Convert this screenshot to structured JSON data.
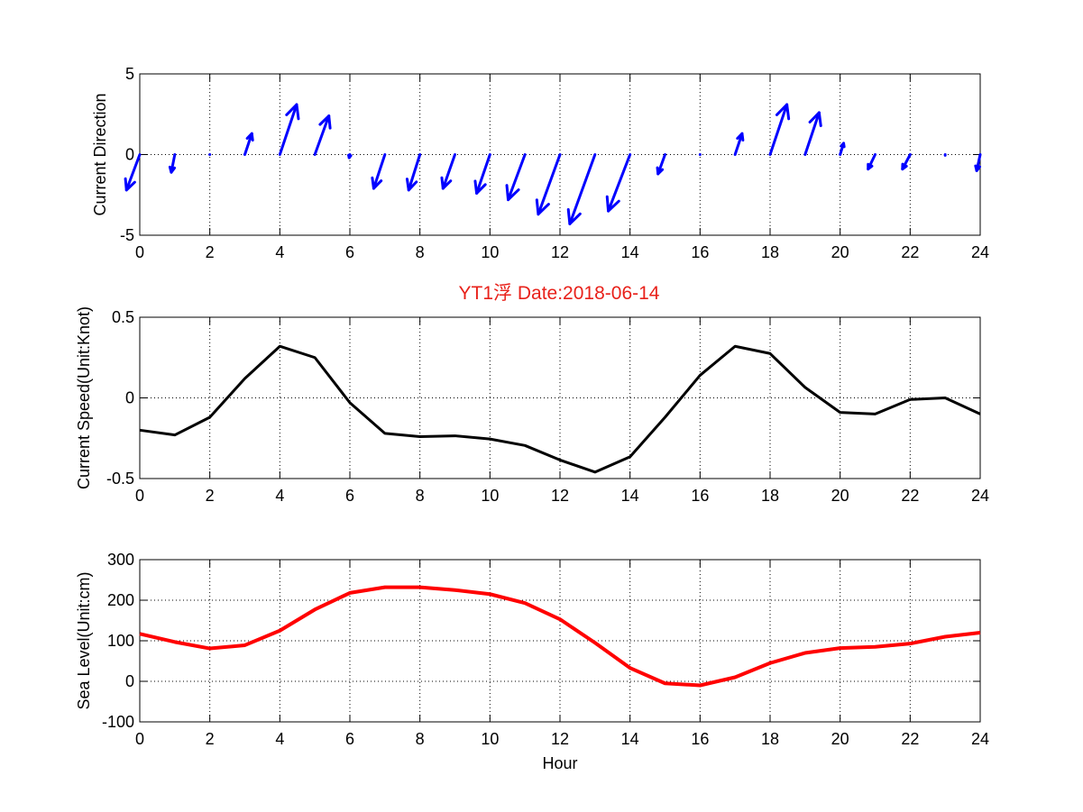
{
  "colors": {
    "direction": "#0000ff",
    "speed": "#000000",
    "sea_level": "#ff0000",
    "title": "#e8211a"
  },
  "title": "YT1浮    Date:2018-06-14",
  "chart_data": [
    {
      "type": "quiver",
      "ylabel": "Current Direction",
      "xlim": [
        0,
        24
      ],
      "ylim": [
        -5,
        5
      ],
      "xticks": [
        "0",
        "2",
        "4",
        "6",
        "8",
        "10",
        "12",
        "14",
        "16",
        "18",
        "20",
        "22",
        "24"
      ],
      "yticks": [
        "5",
        "0",
        "-5"
      ],
      "grid": true,
      "x": [
        0,
        1,
        2,
        3,
        4,
        5,
        6,
        7,
        8,
        9,
        10,
        11,
        12,
        13,
        14,
        15,
        16,
        17,
        18,
        19,
        20,
        21,
        22,
        23,
        24
      ],
      "u": [
        -0.38,
        -0.1,
        0,
        0.2,
        0.48,
        0.4,
        -0.02,
        -0.32,
        -0.32,
        -0.34,
        -0.38,
        -0.48,
        -0.62,
        -0.72,
        -0.62,
        -0.2,
        0,
        0.2,
        0.48,
        0.4,
        0.1,
        -0.2,
        -0.22,
        0,
        -0.1
      ],
      "v": [
        -2.2,
        -1.1,
        0,
        1.3,
        3.1,
        2.4,
        -0.2,
        -2.1,
        -2.2,
        -2.1,
        -2.4,
        -2.8,
        -3.7,
        -4.3,
        -3.5,
        -1.2,
        0,
        1.3,
        3.1,
        2.6,
        0.7,
        -0.9,
        -0.9,
        -0.05,
        -1.0
      ]
    },
    {
      "type": "line",
      "ylabel": "Current Speed(Unit:Knot)",
      "xlim": [
        0,
        24
      ],
      "ylim": [
        -0.5,
        0.5
      ],
      "xticks": [
        "0",
        "2",
        "4",
        "6",
        "8",
        "10",
        "12",
        "14",
        "16",
        "18",
        "20",
        "22",
        "24"
      ],
      "yticks": [
        "0.5",
        "0",
        "-0.5"
      ],
      "grid": true,
      "x": [
        0,
        1,
        2,
        3,
        4,
        5,
        6,
        7,
        8,
        9,
        10,
        11,
        12,
        13,
        14,
        15,
        16,
        17,
        18,
        19,
        20,
        21,
        22,
        23,
        24
      ],
      "y": [
        -0.2,
        -0.23,
        -0.12,
        0.12,
        0.32,
        0.25,
        -0.03,
        -0.22,
        -0.24,
        -0.235,
        -0.255,
        -0.295,
        -0.385,
        -0.46,
        -0.365,
        -0.12,
        0.14,
        0.32,
        0.275,
        0.065,
        -0.09,
        -0.1,
        -0.01,
        0,
        -0.1
      ]
    },
    {
      "type": "line",
      "xlabel": "Hour",
      "ylabel": "Sea Level(Unit:cm)",
      "xlim": [
        0,
        24
      ],
      "ylim": [
        -100,
        300
      ],
      "xticks": [
        "0",
        "2",
        "4",
        "6",
        "8",
        "10",
        "12",
        "14",
        "16",
        "18",
        "20",
        "22",
        "24"
      ],
      "yticks": [
        "300",
        "200",
        "100",
        "0",
        "-100"
      ],
      "grid": true,
      "x": [
        0,
        1,
        2,
        3,
        4,
        5,
        6,
        7,
        8,
        9,
        10,
        11,
        12,
        13,
        14,
        15,
        16,
        17,
        18,
        19,
        20,
        21,
        22,
        23,
        24
      ],
      "y": [
        117,
        97,
        81,
        89,
        125,
        177,
        218,
        232,
        232,
        225,
        215,
        193,
        153,
        95,
        33,
        -5,
        -10,
        10,
        45,
        70,
        82,
        85,
        93,
        110,
        120
      ]
    }
  ]
}
